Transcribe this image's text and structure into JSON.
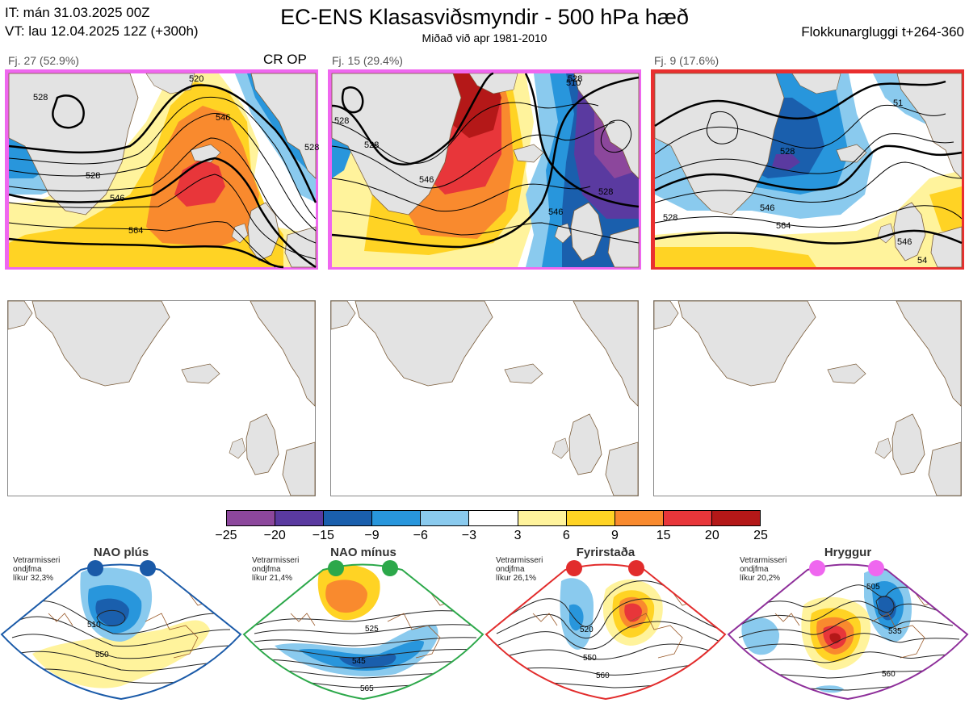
{
  "header": {
    "init_time": "IT: mán 31.03.2025 00Z",
    "valid_time": "VT: lau 12.04.2025 12Z  (+300h)",
    "title": "EC-ENS Klasasviðsmyndir - 500 hPa hæð",
    "subtitle": "Miðað við apr 1981-2010",
    "window": "Flokkunargluggi t+264-360"
  },
  "clusters": [
    {
      "label": "Fj. 27 (52.9%)",
      "tag": "CR OP",
      "members": 27,
      "percent": 52.9,
      "border_color": "#ef67ef",
      "contour_labels": [
        "520",
        "528",
        "528",
        "546",
        "546",
        "564",
        "528"
      ]
    },
    {
      "label": "Fj. 15 (29.4%)",
      "tag": "",
      "members": 15,
      "percent": 29.4,
      "border_color": "#ef67ef",
      "contour_labels": [
        "510",
        "528",
        "528",
        "546",
        "546",
        "528",
        "528"
      ]
    },
    {
      "label": "Fj. 9 (17.6%)",
      "tag": "",
      "members": 9,
      "percent": 17.6,
      "border_color": "#ea2f2f",
      "contour_labels": [
        "51",
        "528",
        "546",
        "564",
        "528",
        "546",
        "54"
      ]
    }
  ],
  "colorbar": {
    "ticks": [
      "−25",
      "−20",
      "−15",
      "−9",
      "−6",
      "−3",
      "3",
      "6",
      "9",
      "15",
      "20",
      "25"
    ],
    "colors": [
      "#8c479c",
      "#5a3aa0",
      "#1a5fad",
      "#2896dc",
      "#8acaee",
      "#ffffff",
      "#fff39c",
      "#ffd324",
      "#f98a2e",
      "#e8363a",
      "#b41818"
    ]
  },
  "regimes": [
    {
      "name": "NAO plús",
      "season": "Vetrarmisseri",
      "type": "ondjfma",
      "probability": "líkur 32,3%",
      "color": "#1a5aa8",
      "contour_labels": [
        "510",
        "550"
      ]
    },
    {
      "name": "NAO mínus",
      "season": "Vetrarmisseri",
      "type": "ondjfma",
      "probability": "líkur 21,4%",
      "color": "#2ca84a",
      "contour_labels": [
        "525",
        "545",
        "565"
      ]
    },
    {
      "name": "Fyrirstaða",
      "season": "Vetrarmisseri",
      "type": "ondjfma",
      "probability": "líkur 26,1%",
      "color": "#e22c2c",
      "contour_labels": [
        "520",
        "550",
        "560"
      ]
    },
    {
      "name": "Hryggur",
      "season": "Vetrarmisseri",
      "type": "ondjfma",
      "probability": "líkur 20,2%",
      "color": "#8e2f9a",
      "contour_labels": [
        "505",
        "535",
        "560"
      ]
    }
  ]
}
